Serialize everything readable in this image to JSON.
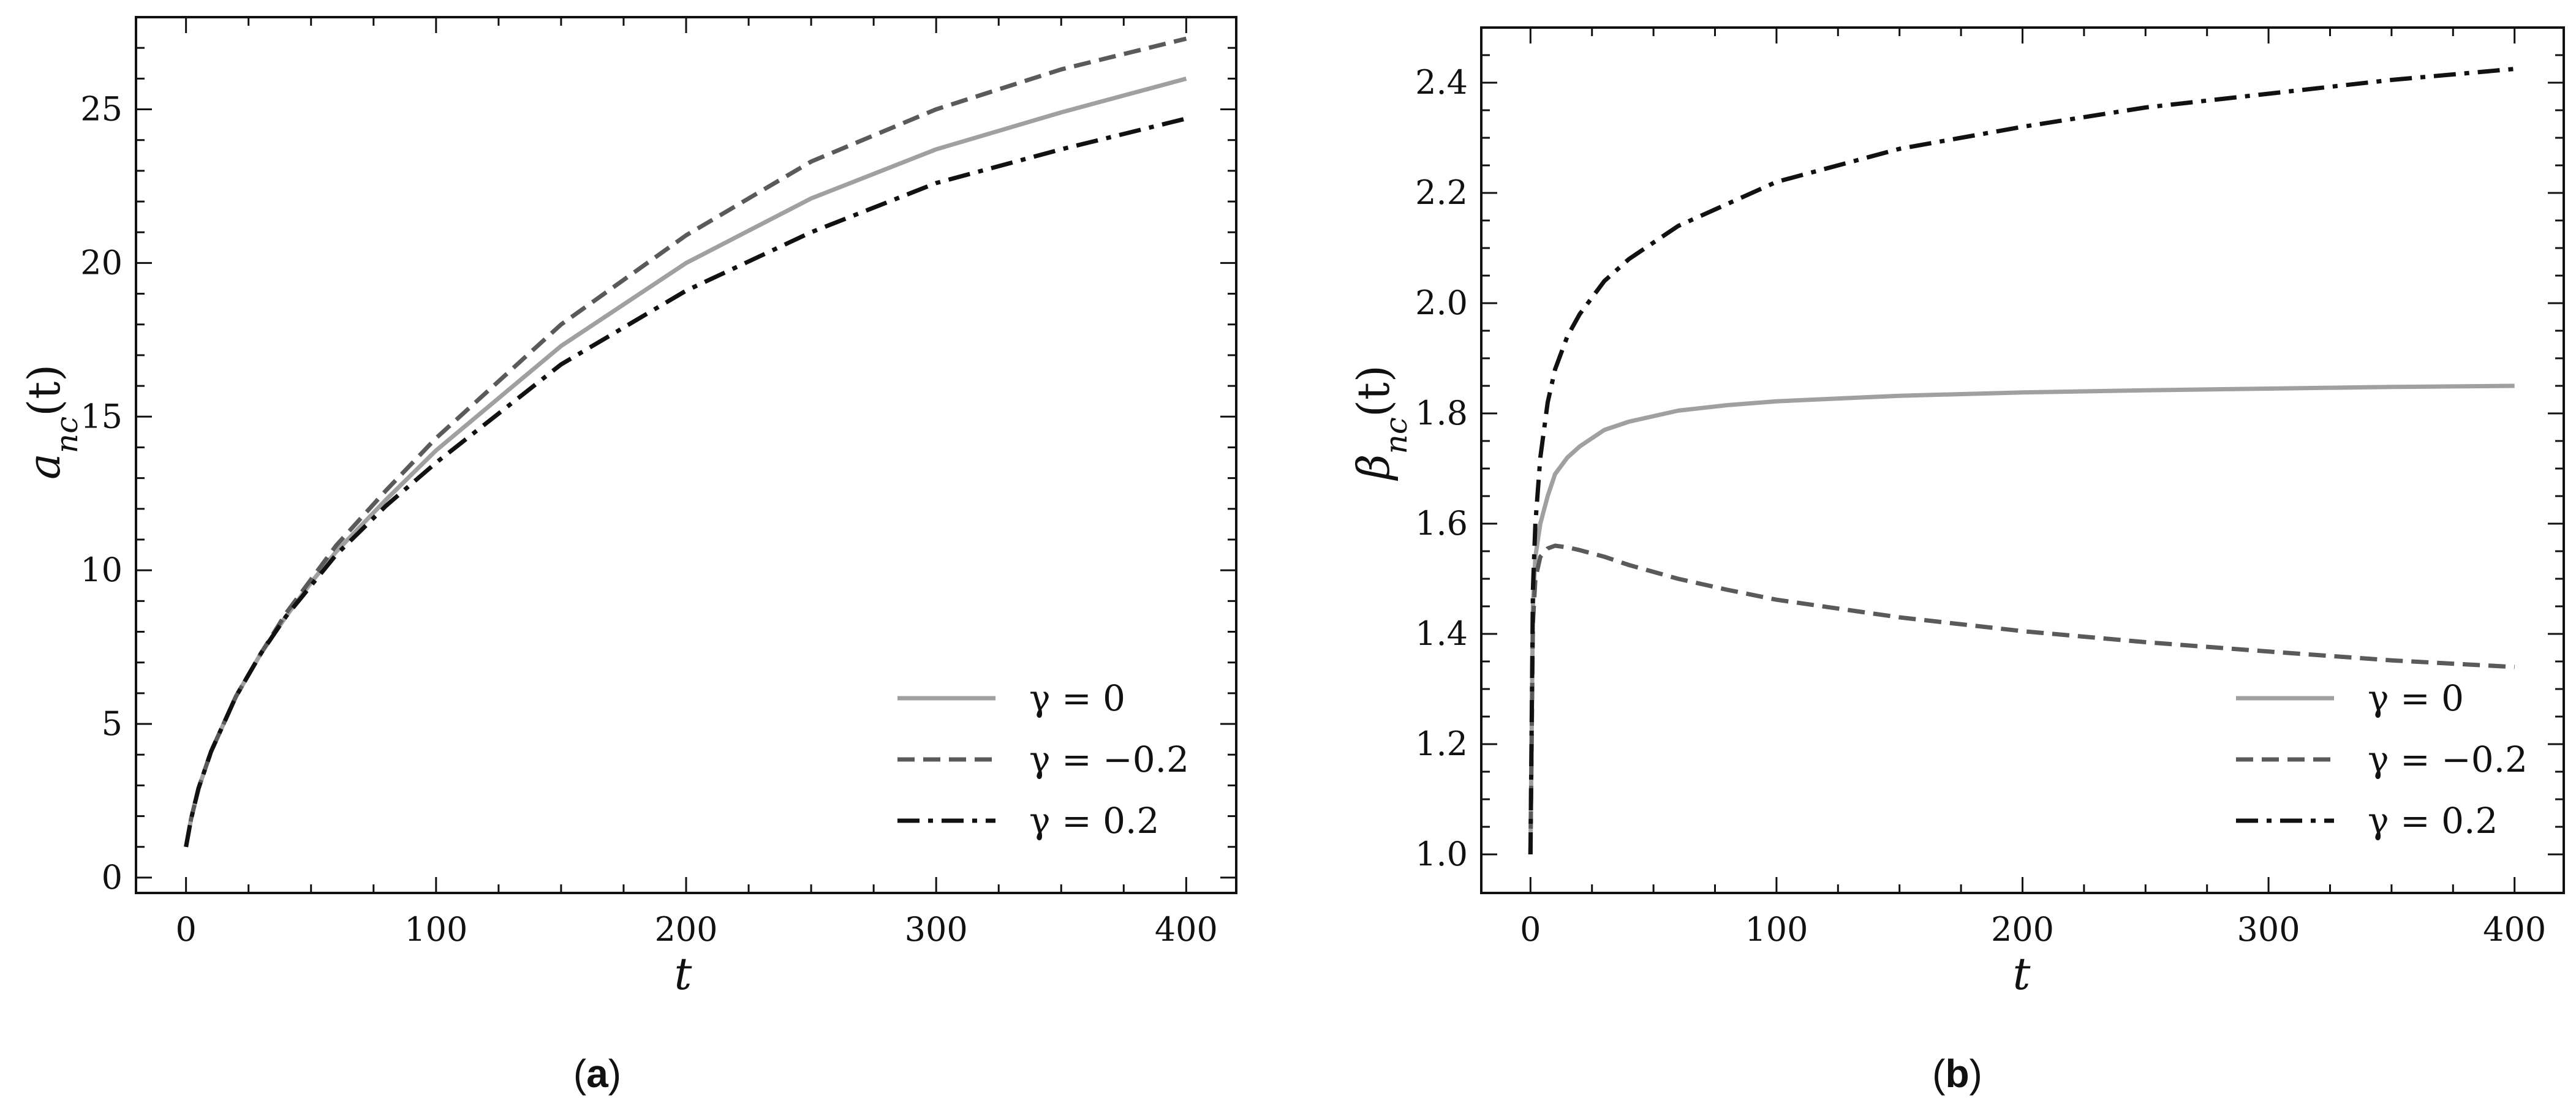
{
  "chart_data": [
    {
      "type": "line",
      "caption_open": "(",
      "caption_letter": "a",
      "caption_close": ")",
      "xlabel": "t",
      "ylabel": "a",
      "ylabel_sub": "nc",
      "ylabel_suffix": "(t)",
      "xlim": [
        -20,
        420
      ],
      "ylim": [
        -0.5,
        28
      ],
      "xticks": [
        0,
        100,
        200,
        300,
        400
      ],
      "yticks": [
        0,
        5,
        10,
        15,
        20,
        25
      ],
      "legend": "lower-right",
      "series": [
        {
          "name": "γ = 0",
          "style": "solid",
          "color": "#a0a0a0",
          "x": [
            0,
            2,
            5,
            10,
            20,
            30,
            40,
            50,
            60,
            80,
            100,
            150,
            200,
            250,
            300,
            350,
            400
          ],
          "y": [
            1.0,
            1.9,
            2.9,
            4.1,
            5.9,
            7.3,
            8.5,
            9.6,
            10.6,
            12.3,
            13.9,
            17.3,
            20.0,
            22.1,
            23.7,
            24.9,
            26.0
          ]
        },
        {
          "name": "γ = −0.2",
          "style": "dashed",
          "color": "#5a5a5a",
          "x": [
            0,
            2,
            5,
            10,
            20,
            30,
            40,
            50,
            60,
            80,
            100,
            150,
            200,
            250,
            300,
            350,
            400
          ],
          "y": [
            1.0,
            1.9,
            2.9,
            4.1,
            5.9,
            7.3,
            8.6,
            9.7,
            10.8,
            12.6,
            14.3,
            18.0,
            20.9,
            23.3,
            25.0,
            26.3,
            27.3
          ]
        },
        {
          "name": "γ = 0.2",
          "style": "dashdot",
          "color": "#111111",
          "x": [
            0,
            2,
            5,
            10,
            20,
            30,
            40,
            50,
            60,
            80,
            100,
            150,
            200,
            250,
            300,
            350,
            400
          ],
          "y": [
            1.0,
            1.9,
            2.9,
            4.1,
            5.9,
            7.3,
            8.5,
            9.5,
            10.5,
            12.1,
            13.5,
            16.7,
            19.1,
            21.0,
            22.6,
            23.7,
            24.7
          ]
        }
      ]
    },
    {
      "type": "line",
      "caption_open": "(",
      "caption_letter": "b",
      "caption_close": ")",
      "xlabel": "t",
      "ylabel": "β",
      "ylabel_sub": "nc",
      "ylabel_suffix": "(t)",
      "xlim": [
        -20,
        420
      ],
      "ylim": [
        0.93,
        2.5
      ],
      "xticks": [
        0,
        100,
        200,
        300,
        400
      ],
      "yticks": [
        1.0,
        1.2,
        1.4,
        1.6,
        1.8,
        2.0,
        2.2,
        2.4
      ],
      "ytick_labels": [
        "1.0",
        "1.2",
        "1.4",
        "1.6",
        "1.8",
        "2.0",
        "2.2",
        "2.4"
      ],
      "legend": "lower-right",
      "series": [
        {
          "name": "γ = 0",
          "style": "solid",
          "color": "#a0a0a0",
          "x": [
            0,
            1,
            2,
            4,
            7,
            10,
            15,
            20,
            30,
            40,
            60,
            80,
            100,
            150,
            200,
            250,
            300,
            350,
            400
          ],
          "y": [
            1.0,
            1.45,
            1.54,
            1.6,
            1.65,
            1.69,
            1.72,
            1.74,
            1.77,
            1.785,
            1.805,
            1.815,
            1.822,
            1.832,
            1.838,
            1.842,
            1.845,
            1.848,
            1.85
          ]
        },
        {
          "name": "γ = −0.2",
          "style": "dashed",
          "color": "#5a5a5a",
          "x": [
            0,
            1,
            2,
            4,
            7,
            10,
            15,
            20,
            30,
            40,
            60,
            80,
            100,
            150,
            200,
            250,
            300,
            350,
            400
          ],
          "y": [
            1.0,
            1.42,
            1.5,
            1.54,
            1.555,
            1.56,
            1.557,
            1.552,
            1.54,
            1.525,
            1.5,
            1.48,
            1.462,
            1.43,
            1.405,
            1.385,
            1.368,
            1.352,
            1.34
          ]
        },
        {
          "name": "γ = 0.2",
          "style": "dashdot",
          "color": "#111111",
          "x": [
            0,
            1,
            2,
            4,
            7,
            10,
            15,
            20,
            30,
            40,
            60,
            80,
            100,
            150,
            200,
            250,
            300,
            350,
            400
          ],
          "y": [
            1.0,
            1.48,
            1.6,
            1.72,
            1.82,
            1.88,
            1.94,
            1.98,
            2.04,
            2.08,
            2.14,
            2.18,
            2.22,
            2.28,
            2.32,
            2.355,
            2.38,
            2.405,
            2.425
          ]
        }
      ]
    }
  ]
}
